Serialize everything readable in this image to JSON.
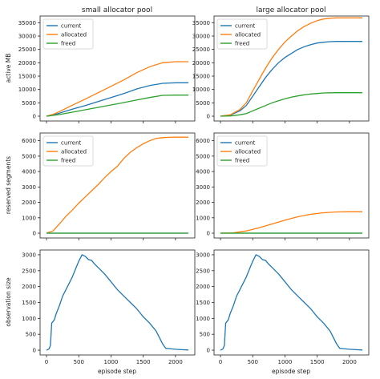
{
  "figure": {
    "col_titles": [
      "small allocator pool",
      "large allocator pool"
    ],
    "ylabels": [
      "active MB",
      "reserved segments",
      "observation size"
    ],
    "xlabel": "episode step"
  },
  "chart_data": [
    {
      "type": "line",
      "row": 0,
      "col": 0,
      "title": "small allocator pool",
      "xlabel": "",
      "ylabel": "active MB",
      "xlim": [
        -100,
        2300
      ],
      "ylim": [
        -1800,
        37500
      ],
      "xticks": [
        0,
        500,
        1000,
        1500,
        2000
      ],
      "yticks": [
        0,
        5000,
        10000,
        15000,
        20000,
        25000,
        30000,
        35000
      ],
      "legend": "top-left",
      "series": [
        {
          "name": "current",
          "color": "#1f77b4",
          "x": [
            0,
            100,
            200,
            400,
            600,
            800,
            1000,
            1100,
            1200,
            1400,
            1600,
            1800,
            2000,
            2200
          ],
          "y": [
            0,
            400,
            1100,
            2600,
            4000,
            5500,
            7000,
            7700,
            8500,
            10200,
            11500,
            12300,
            12500,
            12500
          ]
        },
        {
          "name": "allocated",
          "color": "#ff7f0e",
          "x": [
            0,
            100,
            200,
            400,
            600,
            800,
            1000,
            1100,
            1200,
            1400,
            1600,
            1800,
            2000,
            2200
          ],
          "y": [
            0,
            700,
            1700,
            4100,
            6400,
            8800,
            11200,
            12400,
            13600,
            16300,
            18500,
            20000,
            20400,
            20400
          ]
        },
        {
          "name": "freed",
          "color": "#2ca02c",
          "x": [
            0,
            100,
            200,
            400,
            600,
            800,
            1000,
            1200,
            1400,
            1600,
            1800,
            2000,
            2200
          ],
          "y": [
            0,
            300,
            600,
            1500,
            2400,
            3300,
            4200,
            5100,
            6100,
            7000,
            7800,
            7900,
            7900
          ]
        }
      ]
    },
    {
      "type": "line",
      "row": 0,
      "col": 1,
      "title": "large allocator pool",
      "xlabel": "",
      "ylabel": "",
      "xlim": [
        -100,
        2300
      ],
      "ylim": [
        -1800,
        37500
      ],
      "xticks": [
        0,
        500,
        1000,
        1500,
        2000
      ],
      "yticks": [
        0,
        5000,
        10000,
        15000,
        20000,
        25000,
        30000,
        35000
      ],
      "legend": "top-left",
      "series": [
        {
          "name": "current",
          "color": "#1f77b4",
          "x": [
            0,
            150,
            300,
            400,
            500,
            600,
            700,
            800,
            900,
            1000,
            1100,
            1200,
            1300,
            1400,
            1500,
            1600,
            1700,
            1800,
            2000,
            2200
          ],
          "y": [
            0,
            400,
            2000,
            4000,
            7500,
            11000,
            14500,
            17500,
            20000,
            22000,
            23500,
            25000,
            26000,
            26800,
            27400,
            27700,
            27900,
            28000,
            28000,
            28000
          ]
        },
        {
          "name": "allocated",
          "color": "#ff7f0e",
          "x": [
            0,
            150,
            300,
            400,
            500,
            600,
            700,
            800,
            900,
            1000,
            1100,
            1200,
            1300,
            1400,
            1500,
            1600,
            1700,
            1800,
            2000,
            2200
          ],
          "y": [
            0,
            500,
            2500,
            5000,
            9500,
            13800,
            18000,
            21800,
            25000,
            27800,
            30000,
            32000,
            33600,
            34800,
            35800,
            36400,
            36700,
            36800,
            36800,
            36800
          ]
        },
        {
          "name": "freed",
          "color": "#2ca02c",
          "x": [
            0,
            150,
            300,
            400,
            500,
            600,
            700,
            800,
            900,
            1000,
            1100,
            1200,
            1300,
            1400,
            1500,
            1600,
            1700,
            1800,
            2000,
            2200
          ],
          "y": [
            0,
            100,
            500,
            1000,
            2000,
            3000,
            4000,
            5000,
            5800,
            6500,
            7100,
            7600,
            8000,
            8300,
            8500,
            8700,
            8750,
            8800,
            8800,
            8800
          ]
        }
      ]
    },
    {
      "type": "line",
      "row": 1,
      "col": 0,
      "title": "",
      "xlabel": "",
      "ylabel": "reserved segments",
      "xlim": [
        -100,
        2300
      ],
      "ylim": [
        -310,
        6500
      ],
      "xticks": [
        0,
        500,
        1000,
        1500,
        2000
      ],
      "yticks": [
        0,
        1000,
        2000,
        3000,
        4000,
        5000,
        6000
      ],
      "legend": "top-left",
      "series": [
        {
          "name": "current",
          "color": "#1f77b4",
          "x": [
            0,
            2200
          ],
          "y": [
            0,
            0
          ]
        },
        {
          "name": "allocated",
          "color": "#ff7f0e",
          "x": [
            0,
            100,
            200,
            300,
            400,
            500,
            600,
            700,
            800,
            900,
            1000,
            1100,
            1200,
            1300,
            1400,
            1500,
            1600,
            1700,
            1800,
            1900,
            2000,
            2200
          ],
          "y": [
            0,
            150,
            600,
            1100,
            1500,
            1950,
            2350,
            2750,
            3150,
            3600,
            4000,
            4350,
            4850,
            5250,
            5550,
            5800,
            6000,
            6150,
            6200,
            6220,
            6230,
            6230
          ]
        },
        {
          "name": "freed",
          "color": "#2ca02c",
          "x": [
            0,
            2200
          ],
          "y": [
            0,
            0
          ]
        }
      ]
    },
    {
      "type": "line",
      "row": 1,
      "col": 1,
      "title": "",
      "xlabel": "",
      "ylabel": "",
      "xlim": [
        -100,
        2300
      ],
      "ylim": [
        -310,
        6500
      ],
      "xticks": [
        0,
        500,
        1000,
        1500,
        2000
      ],
      "yticks": [
        0,
        1000,
        2000,
        3000,
        4000,
        5000,
        6000
      ],
      "legend": "top-left",
      "series": [
        {
          "name": "current",
          "color": "#1f77b4",
          "x": [
            0,
            2200
          ],
          "y": [
            0,
            0
          ]
        },
        {
          "name": "allocated",
          "color": "#ff7f0e",
          "x": [
            0,
            200,
            400,
            600,
            800,
            1000,
            1200,
            1400,
            1600,
            1800,
            2000,
            2200
          ],
          "y": [
            0,
            20,
            150,
            350,
            600,
            850,
            1070,
            1230,
            1330,
            1380,
            1390,
            1390
          ]
        },
        {
          "name": "freed",
          "color": "#2ca02c",
          "x": [
            0,
            2200
          ],
          "y": [
            0,
            0
          ]
        }
      ]
    },
    {
      "type": "line",
      "row": 2,
      "col": 0,
      "title": "",
      "xlabel": "episode step",
      "ylabel": "observation size",
      "xlim": [
        -100,
        2300
      ],
      "ylim": [
        -150,
        3150
      ],
      "xticks": [
        0,
        500,
        1000,
        1500,
        2000
      ],
      "yticks": [
        0,
        500,
        1000,
        1500,
        2000,
        2500,
        3000
      ],
      "legend": "none",
      "series": [
        {
          "name": "observation size",
          "color": "#1f77b4",
          "x": [
            0,
            20,
            40,
            60,
            80,
            100,
            120,
            150,
            200,
            250,
            300,
            350,
            400,
            450,
            500,
            550,
            600,
            650,
            700,
            750,
            800,
            900,
            1000,
            1100,
            1200,
            1300,
            1400,
            1500,
            1600,
            1700,
            1750,
            1800,
            1850,
            1900,
            2000,
            2100,
            2200
          ],
          "y": [
            0,
            20,
            50,
            150,
            850,
            900,
            950,
            1150,
            1400,
            1700,
            1900,
            2100,
            2300,
            2550,
            2800,
            3000,
            2950,
            2850,
            2820,
            2700,
            2600,
            2400,
            2150,
            1900,
            1700,
            1500,
            1300,
            1050,
            850,
            600,
            400,
            200,
            60,
            50,
            30,
            15,
            5
          ]
        }
      ]
    },
    {
      "type": "line",
      "row": 2,
      "col": 1,
      "title": "",
      "xlabel": "episode step",
      "ylabel": "",
      "xlim": [
        -100,
        2300
      ],
      "ylim": [
        -150,
        3150
      ],
      "xticks": [
        0,
        500,
        1000,
        1500,
        2000
      ],
      "yticks": [
        0,
        500,
        1000,
        1500,
        2000,
        2500,
        3000
      ],
      "legend": "none",
      "series": [
        {
          "name": "observation size",
          "color": "#1f77b4",
          "x": [
            0,
            20,
            40,
            60,
            80,
            100,
            120,
            150,
            200,
            250,
            300,
            350,
            400,
            450,
            500,
            550,
            600,
            650,
            700,
            750,
            800,
            900,
            1000,
            1100,
            1200,
            1300,
            1400,
            1500,
            1600,
            1700,
            1750,
            1800,
            1850,
            1900,
            2000,
            2100,
            2200
          ],
          "y": [
            0,
            20,
            50,
            150,
            850,
            900,
            950,
            1150,
            1400,
            1700,
            1900,
            2100,
            2300,
            2550,
            2800,
            3000,
            2950,
            2850,
            2820,
            2700,
            2600,
            2400,
            2150,
            1900,
            1700,
            1500,
            1300,
            1050,
            850,
            600,
            400,
            200,
            60,
            50,
            30,
            15,
            5
          ]
        }
      ]
    }
  ]
}
